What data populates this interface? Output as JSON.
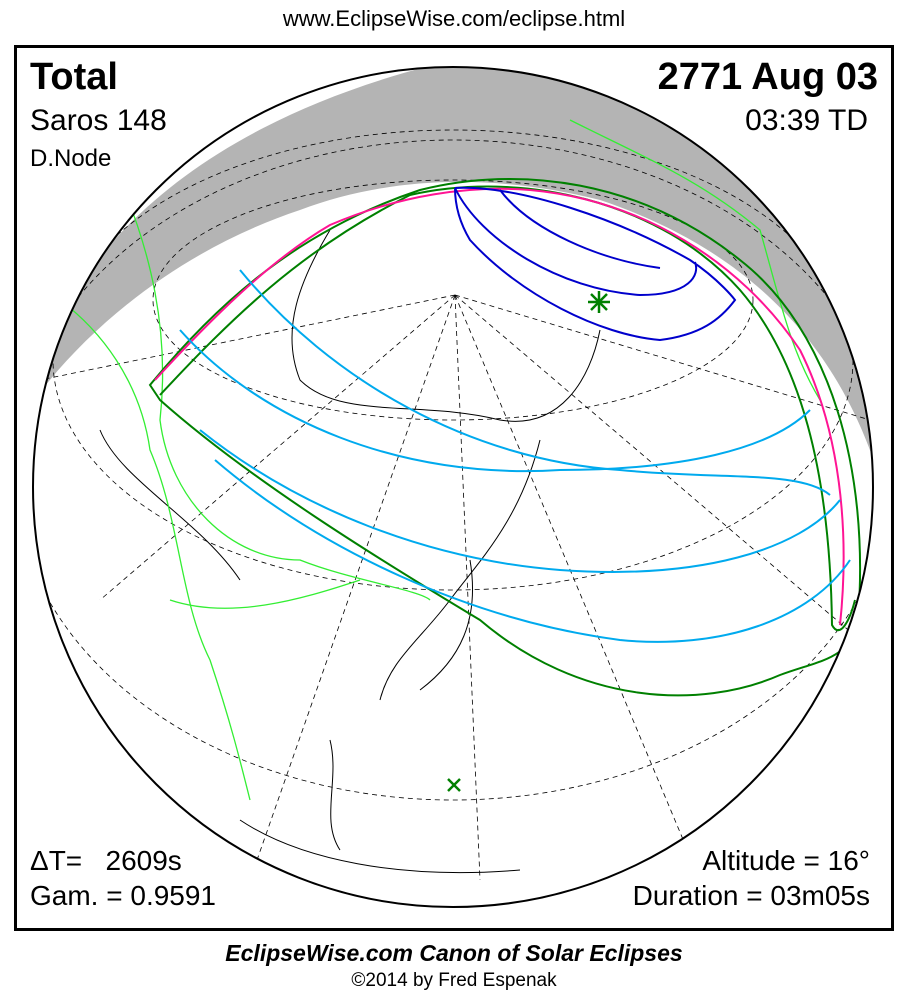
{
  "url": "www.EclipseWise.com/eclipse.html",
  "eclipse": {
    "type": "Total",
    "date": "2771 Aug 03",
    "saros": "Saros 148",
    "time": "03:39 TD",
    "node": "D.Node",
    "delta_t": "ΔT=   2609s",
    "gamma": "Gam. = 0.9591",
    "altitude": "Altitude = 16°",
    "duration": "Duration = 03m05s"
  },
  "footer": {
    "canon": "EclipseWise.com Canon of Solar Eclipses",
    "copyright": "©2014 by Fred Espenak"
  },
  "colors": {
    "penumbra_limit": "#008000",
    "rise_set_curve": "#ff1493",
    "eclipse_magnitude_lines": "#00aaee",
    "umbral_path": "#0000cc",
    "borders": "#33ee33",
    "night": "#b4b4b4"
  }
}
